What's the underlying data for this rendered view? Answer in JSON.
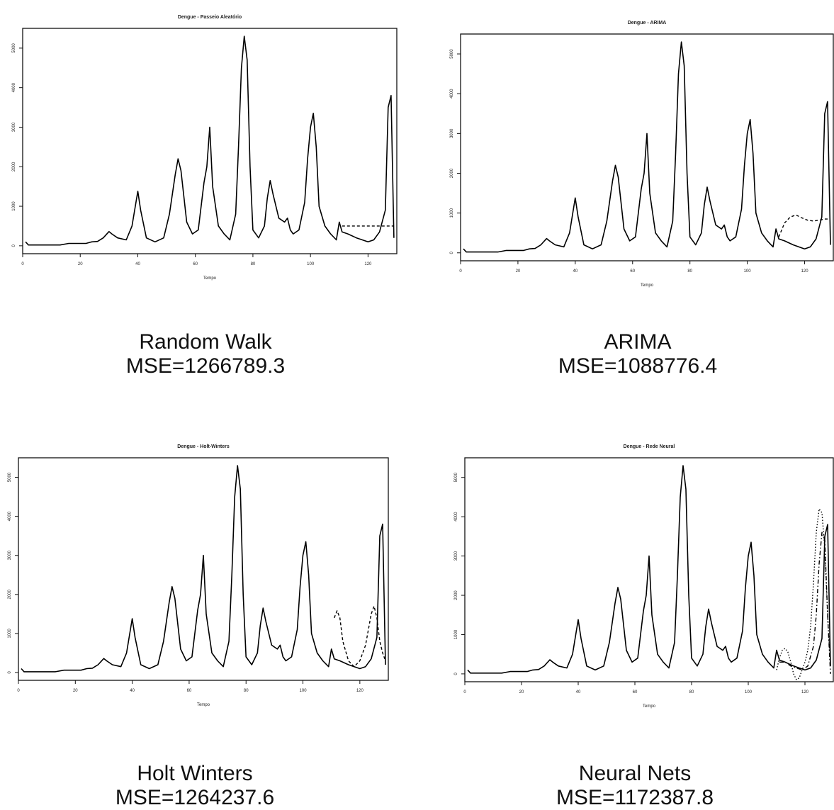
{
  "chart_data": [
    {
      "type": "line",
      "title": "Dengue - Passeio Aleatório",
      "xlabel": "Tempo",
      "ylabel": "",
      "xlim": [
        0,
        130
      ],
      "ylim": [
        -200,
        5500
      ],
      "xticks": [
        0,
        20,
        40,
        60,
        80,
        100,
        120
      ],
      "yticks": [
        0,
        1000,
        2000,
        3000,
        4000,
        5000
      ],
      "grid": false,
      "series": [
        {
          "style": "solid",
          "x": [
            1,
            2,
            5,
            10,
            13,
            16,
            20,
            22,
            24,
            26,
            28,
            30,
            31,
            33,
            36,
            38,
            40,
            41,
            43,
            46,
            49,
            51,
            53,
            54,
            55,
            57,
            59,
            61,
            63,
            64,
            65,
            66,
            68,
            70,
            72,
            74,
            75,
            76,
            77,
            78,
            79,
            80,
            82,
            84,
            85,
            86,
            87,
            89,
            91,
            92,
            93,
            94,
            96,
            98,
            99,
            100,
            101,
            102,
            103,
            105,
            107,
            109,
            110,
            111,
            113,
            116,
            118,
            120,
            122,
            124,
            126,
            127,
            128,
            129
          ],
          "y": [
            100,
            20,
            20,
            20,
            20,
            60,
            60,
            60,
            100,
            110,
            200,
            360,
            300,
            200,
            150,
            500,
            1380,
            900,
            200,
            100,
            200,
            800,
            1800,
            2200,
            1900,
            600,
            300,
            400,
            1600,
            2000,
            3000,
            1500,
            500,
            300,
            150,
            800,
            2500,
            4500,
            5300,
            4700,
            2000,
            400,
            200,
            500,
            1200,
            1650,
            1300,
            700,
            600,
            700,
            400,
            300,
            400,
            1100,
            2200,
            3000,
            3350,
            2500,
            1000,
            500,
            300,
            150,
            600,
            350,
            300,
            200,
            150,
            100,
            150,
            350,
            900,
            3500,
            3800,
            200
          ]
        },
        {
          "style": "dashed",
          "x": [
            111,
            129
          ],
          "y": [
            500,
            500
          ]
        }
      ],
      "caption_line1": "Random Walk",
      "caption_line2": "MSE=1266789.3"
    },
    {
      "type": "line",
      "title": "Dengue - ARIMA",
      "xlabel": "Tempo",
      "ylabel": "",
      "xlim": [
        0,
        130
      ],
      "ylim": [
        -200,
        5500
      ],
      "xticks": [
        0,
        20,
        40,
        60,
        80,
        100,
        120
      ],
      "yticks": [
        0,
        1000,
        2000,
        3000,
        4000,
        5000
      ],
      "grid": false,
      "series": [
        {
          "style": "solid",
          "x": [
            1,
            2,
            5,
            10,
            13,
            16,
            20,
            22,
            24,
            26,
            28,
            30,
            31,
            33,
            36,
            38,
            40,
            41,
            43,
            46,
            49,
            51,
            53,
            54,
            55,
            57,
            59,
            61,
            63,
            64,
            65,
            66,
            68,
            70,
            72,
            74,
            75,
            76,
            77,
            78,
            79,
            80,
            82,
            84,
            85,
            86,
            87,
            89,
            91,
            92,
            93,
            94,
            96,
            98,
            99,
            100,
            101,
            102,
            103,
            105,
            107,
            109,
            110,
            111,
            113,
            116,
            118,
            120,
            122,
            124,
            126,
            127,
            128,
            129
          ],
          "y": [
            100,
            20,
            20,
            20,
            20,
            60,
            60,
            60,
            100,
            110,
            200,
            360,
            300,
            200,
            150,
            500,
            1380,
            900,
            200,
            100,
            200,
            800,
            1800,
            2200,
            1900,
            600,
            300,
            400,
            1600,
            2000,
            3000,
            1500,
            500,
            300,
            150,
            800,
            2500,
            4500,
            5300,
            4700,
            2000,
            400,
            200,
            500,
            1200,
            1650,
            1300,
            700,
            600,
            700,
            400,
            300,
            400,
            1100,
            2200,
            3000,
            3350,
            2500,
            1000,
            500,
            300,
            150,
            600,
            350,
            300,
            200,
            150,
            100,
            150,
            350,
            900,
            3500,
            3800,
            200
          ]
        },
        {
          "style": "dashed",
          "x": [
            111,
            113,
            115,
            117,
            119,
            121,
            123,
            125,
            127,
            129
          ],
          "y": [
            400,
            750,
            900,
            950,
            880,
            820,
            800,
            820,
            850,
            850
          ]
        }
      ],
      "caption_line1": "ARIMA",
      "caption_line2": "MSE=1088776.4"
    },
    {
      "type": "line",
      "title": "Dengue - Holt-Winters",
      "xlabel": "Tempo",
      "ylabel": "",
      "xlim": [
        0,
        130
      ],
      "ylim": [
        -200,
        5500
      ],
      "xticks": [
        0,
        20,
        40,
        60,
        80,
        100,
        120
      ],
      "yticks": [
        0,
        1000,
        2000,
        3000,
        4000,
        5000
      ],
      "grid": false,
      "series": [
        {
          "style": "solid",
          "x": [
            1,
            2,
            5,
            10,
            13,
            16,
            20,
            22,
            24,
            26,
            28,
            30,
            31,
            33,
            36,
            38,
            40,
            41,
            43,
            46,
            49,
            51,
            53,
            54,
            55,
            57,
            59,
            61,
            63,
            64,
            65,
            66,
            68,
            70,
            72,
            74,
            75,
            76,
            77,
            78,
            79,
            80,
            82,
            84,
            85,
            86,
            87,
            89,
            91,
            92,
            93,
            94,
            96,
            98,
            99,
            100,
            101,
            102,
            103,
            105,
            107,
            109,
            110,
            111,
            113,
            116,
            118,
            120,
            122,
            124,
            126,
            127,
            128,
            129
          ],
          "y": [
            100,
            20,
            20,
            20,
            20,
            60,
            60,
            60,
            100,
            110,
            200,
            360,
            300,
            200,
            150,
            500,
            1380,
            900,
            200,
            100,
            200,
            800,
            1800,
            2200,
            1900,
            600,
            300,
            400,
            1600,
            2000,
            3000,
            1500,
            500,
            300,
            150,
            800,
            2500,
            4500,
            5300,
            4700,
            2000,
            400,
            200,
            500,
            1200,
            1650,
            1300,
            700,
            600,
            700,
            400,
            300,
            400,
            1100,
            2200,
            3000,
            3350,
            2500,
            1000,
            500,
            300,
            150,
            600,
            350,
            300,
            200,
            150,
            100,
            150,
            350,
            900,
            3500,
            3800,
            200
          ]
        },
        {
          "style": "dashed",
          "x": [
            111,
            112,
            113,
            114,
            116,
            118,
            120,
            122,
            124,
            125,
            126,
            127,
            128,
            129
          ],
          "y": [
            1400,
            1580,
            1400,
            800,
            300,
            150,
            300,
            700,
            1500,
            1700,
            1400,
            800,
            500,
            300
          ]
        }
      ],
      "caption_line1": "Holt Winters",
      "caption_line2": "MSE=1264237.6"
    },
    {
      "type": "line",
      "title": "Dengue - Rede Neural",
      "xlabel": "Tempo",
      "ylabel": "",
      "xlim": [
        0,
        130
      ],
      "ylim": [
        -200,
        5500
      ],
      "xticks": [
        0,
        20,
        40,
        60,
        80,
        100,
        120
      ],
      "yticks": [
        0,
        1000,
        2000,
        3000,
        4000,
        5000
      ],
      "grid": false,
      "series": [
        {
          "style": "solid",
          "x": [
            1,
            2,
            5,
            10,
            13,
            16,
            20,
            22,
            24,
            26,
            28,
            30,
            31,
            33,
            36,
            38,
            40,
            41,
            43,
            46,
            49,
            51,
            53,
            54,
            55,
            57,
            59,
            61,
            63,
            64,
            65,
            66,
            68,
            70,
            72,
            74,
            75,
            76,
            77,
            78,
            79,
            80,
            82,
            84,
            85,
            86,
            87,
            89,
            91,
            92,
            93,
            94,
            96,
            98,
            99,
            100,
            101,
            102,
            103,
            105,
            107,
            109,
            110,
            111,
            113,
            116,
            118,
            120,
            122,
            124,
            126,
            127,
            128,
            129
          ],
          "y": [
            100,
            20,
            20,
            20,
            20,
            60,
            60,
            60,
            100,
            110,
            200,
            360,
            300,
            200,
            150,
            500,
            1380,
            900,
            200,
            100,
            200,
            800,
            1800,
            2200,
            1900,
            600,
            300,
            400,
            1600,
            2000,
            3000,
            1500,
            500,
            300,
            150,
            800,
            2500,
            4500,
            5300,
            4700,
            2000,
            400,
            200,
            500,
            1200,
            1650,
            1300,
            700,
            600,
            700,
            400,
            300,
            400,
            1100,
            2200,
            3000,
            3350,
            2500,
            1000,
            500,
            300,
            150,
            600,
            350,
            300,
            200,
            150,
            100,
            150,
            350,
            900,
            3500,
            3800,
            200
          ]
        },
        {
          "style": "dotted",
          "x": [
            110,
            111,
            112,
            113,
            114,
            115,
            116,
            117,
            118,
            119,
            120,
            121,
            122,
            123,
            124,
            125,
            126,
            127,
            128,
            129
          ],
          "y": [
            100,
            400,
            600,
            650,
            550,
            300,
            0,
            -150,
            -100,
            100,
            300,
            600,
            1200,
            2300,
            3600,
            4200,
            4100,
            3200,
            1500,
            200
          ]
        },
        {
          "style": "dashdot",
          "x": [
            111,
            113,
            115,
            117,
            119,
            121,
            123,
            124,
            125,
            126,
            127,
            128,
            129
          ],
          "y": [
            300,
            300,
            200,
            150,
            100,
            200,
            700,
            1500,
            2800,
            3600,
            3400,
            1500,
            0
          ]
        }
      ],
      "caption_line1": "Neural Nets",
      "caption_line2": "MSE=1172387.8"
    }
  ]
}
